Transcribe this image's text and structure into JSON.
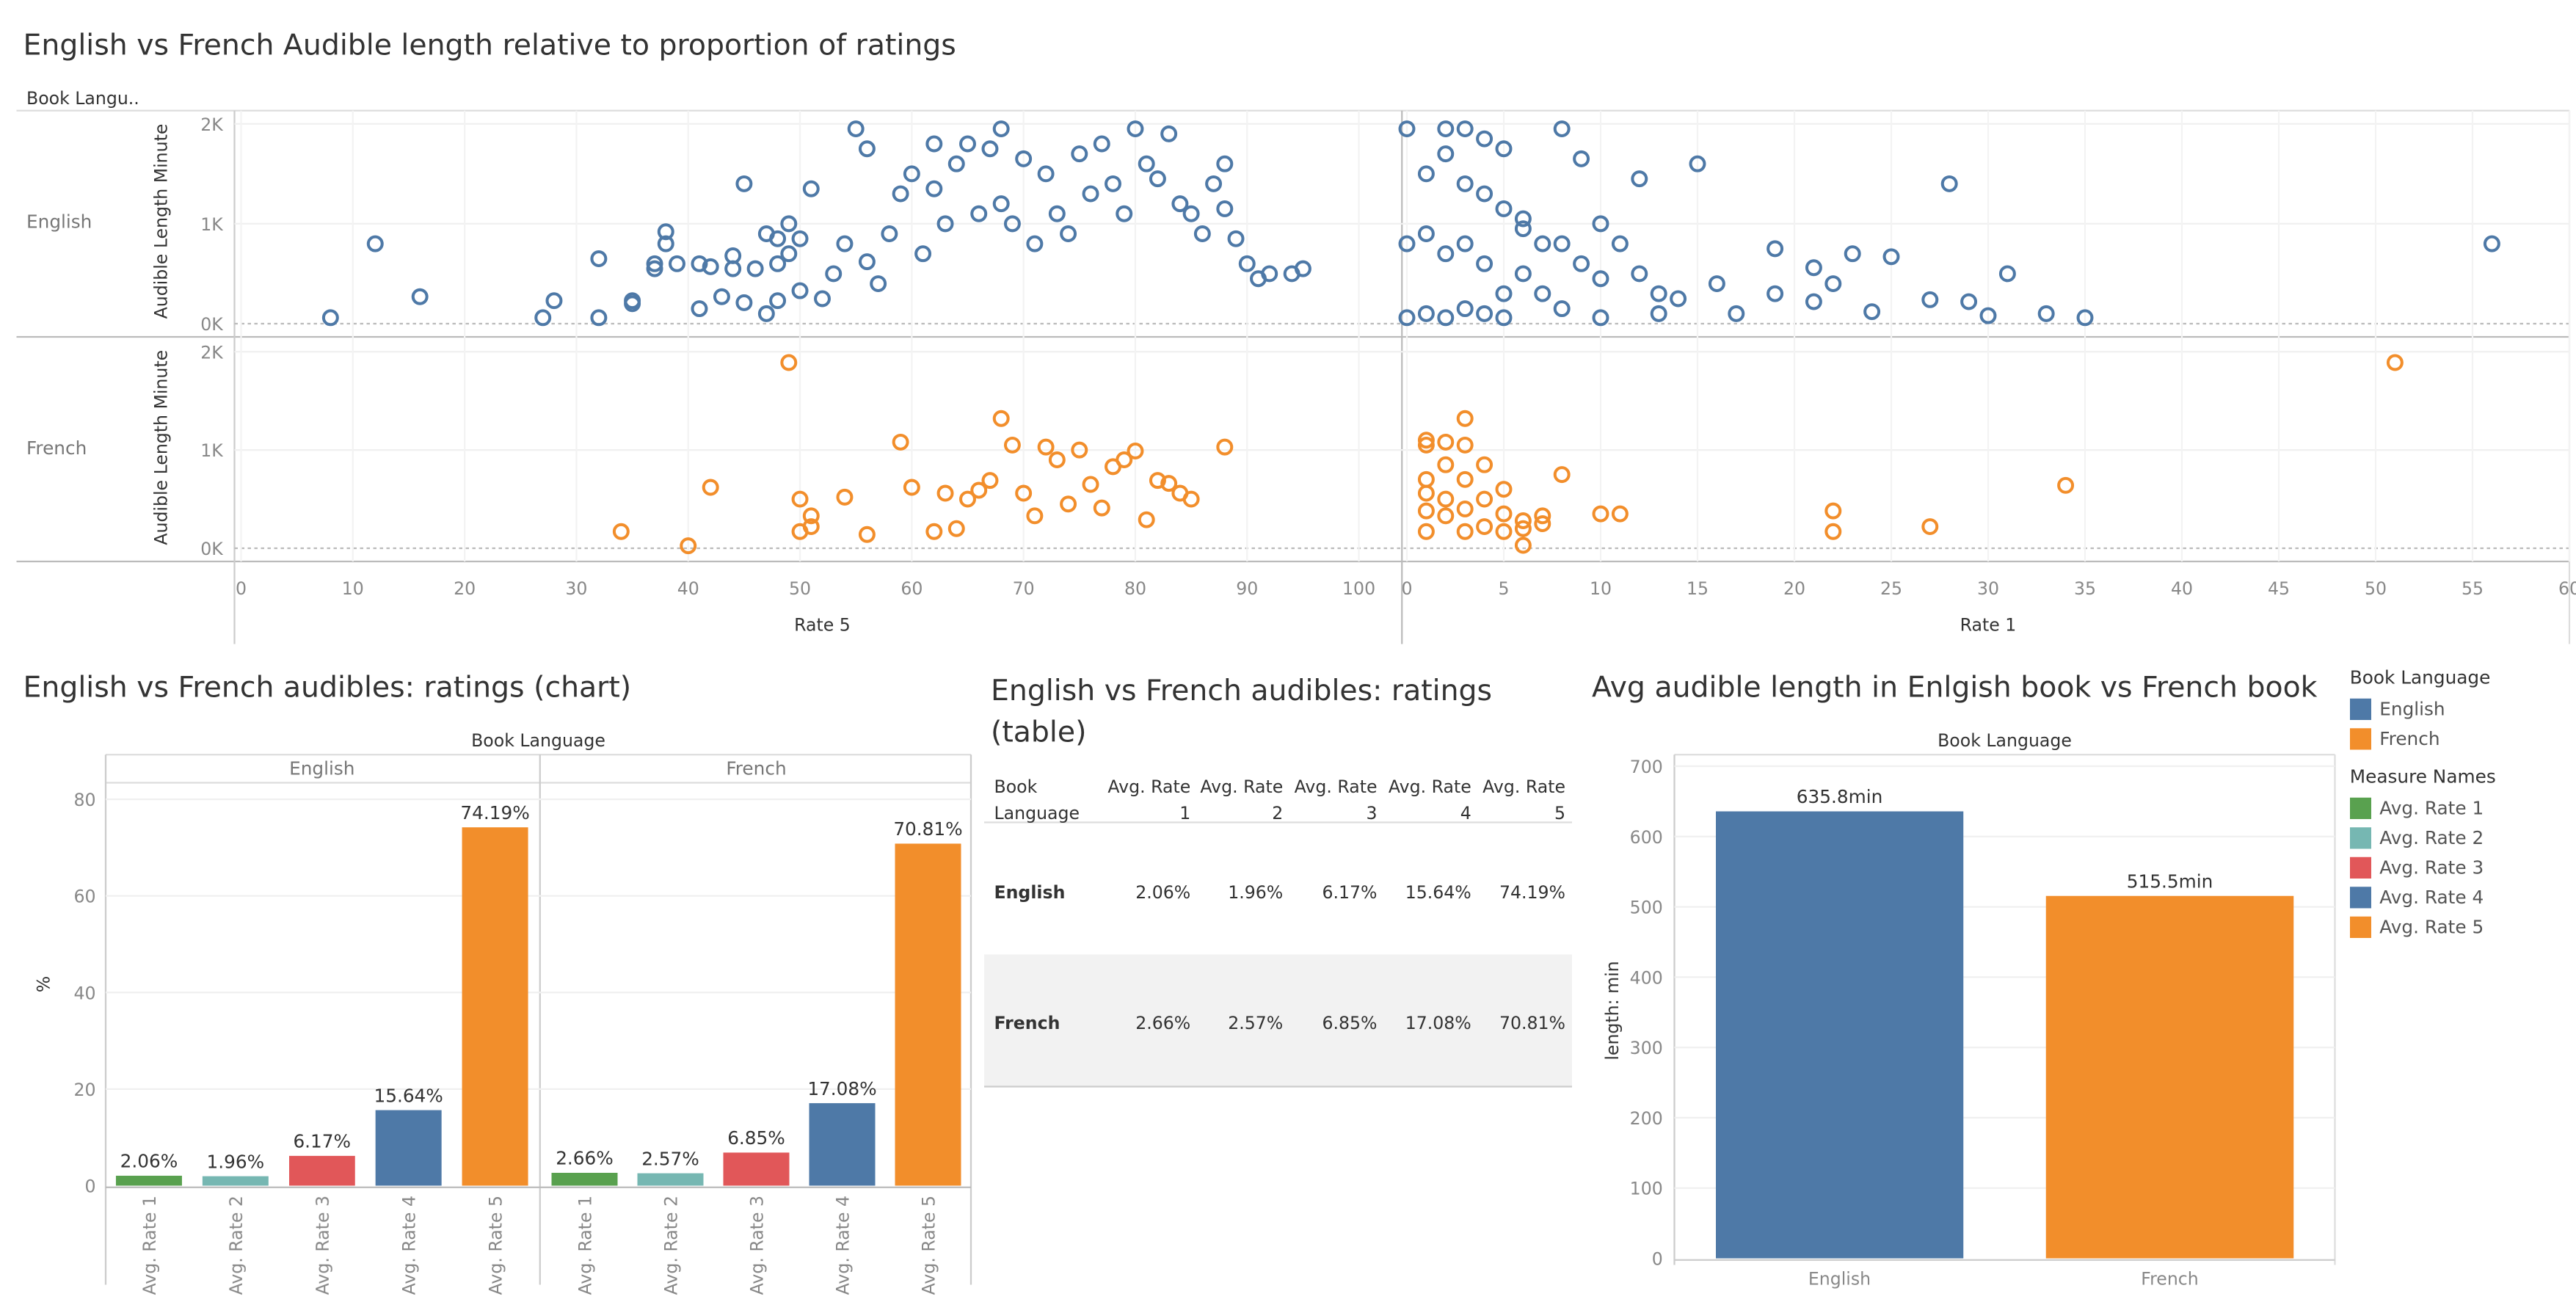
{
  "titles": {
    "scatter": "English vs French Audible length relative to proportion of ratings",
    "bar": "English vs French audibles:  ratings (chart)",
    "table": "English vs French audibles:  ratings (table)",
    "avg": "Avg audible length in Enlgish book vs French book"
  },
  "colors": {
    "english": "#4e79a7",
    "french": "#f28e2b",
    "rate1": "#59a14f",
    "rate2": "#76b7b2",
    "rate3": "#e15759",
    "rate4": "#4e79a7",
    "rate5": "#f28e2b"
  },
  "chart_data": [
    {
      "type": "scatter",
      "title": "English vs French Audible length relative to proportion of ratings",
      "row_field": "Book Langu..",
      "rows": [
        "English",
        "French"
      ],
      "ylabel": "Audible Length Minute",
      "y_ticks": [
        "0K",
        "1K",
        "2K"
      ],
      "ylim": [
        0,
        2000
      ],
      "panels": [
        {
          "xlabel": "Rate 5",
          "xlim": [
            0,
            104
          ],
          "x_ticks": [
            0,
            10,
            20,
            30,
            40,
            50,
            60,
            70,
            80,
            90,
            100
          ]
        },
        {
          "xlabel": "Rate 1",
          "xlim": [
            0,
            60
          ],
          "x_ticks": [
            0,
            5,
            10,
            15,
            20,
            25,
            30,
            35,
            40,
            45,
            50,
            55,
            60
          ]
        }
      ],
      "series": [
        {
          "name": "English",
          "panel": "Rate 5",
          "points": [
            [
              8,
              60
            ],
            [
              12,
              800
            ],
            [
              16,
              270
            ],
            [
              27,
              60
            ],
            [
              28,
              230
            ],
            [
              32,
              650
            ],
            [
              32,
              60
            ],
            [
              35,
              200
            ],
            [
              35,
              230
            ],
            [
              37,
              600
            ],
            [
              37,
              550
            ],
            [
              38,
              920
            ],
            [
              38,
              800
            ],
            [
              39,
              600
            ],
            [
              41,
              150
            ],
            [
              41,
              600
            ],
            [
              42,
              570
            ],
            [
              43,
              270
            ],
            [
              44,
              680
            ],
            [
              44,
              550
            ],
            [
              45,
              1400
            ],
            [
              45,
              210
            ],
            [
              46,
              550
            ],
            [
              47,
              100
            ],
            [
              47,
              900
            ],
            [
              48,
              850
            ],
            [
              48,
              600
            ],
            [
              48,
              230
            ],
            [
              49,
              1000
            ],
            [
              49,
              700
            ],
            [
              50,
              330
            ],
            [
              50,
              850
            ],
            [
              51,
              1350
            ],
            [
              52,
              250
            ],
            [
              53,
              500
            ],
            [
              54,
              800
            ],
            [
              55,
              1950
            ],
            [
              56,
              1750
            ],
            [
              56,
              620
            ],
            [
              57,
              400
            ],
            [
              58,
              900
            ],
            [
              59,
              1300
            ],
            [
              60,
              1500
            ],
            [
              61,
              700
            ],
            [
              62,
              1800
            ],
            [
              62,
              1350
            ],
            [
              63,
              1000
            ],
            [
              64,
              1600
            ],
            [
              65,
              1800
            ],
            [
              66,
              1100
            ],
            [
              67,
              1750
            ],
            [
              68,
              1950
            ],
            [
              68,
              1200
            ],
            [
              69,
              1000
            ],
            [
              70,
              1650
            ],
            [
              71,
              800
            ],
            [
              72,
              1500
            ],
            [
              73,
              1100
            ],
            [
              74,
              900
            ],
            [
              75,
              1700
            ],
            [
              76,
              1300
            ],
            [
              77,
              1800
            ],
            [
              78,
              1400
            ],
            [
              79,
              1100
            ],
            [
              80,
              1950
            ],
            [
              81,
              1600
            ],
            [
              82,
              1450
            ],
            [
              83,
              1900
            ],
            [
              84,
              1200
            ],
            [
              85,
              1100
            ],
            [
              86,
              900
            ],
            [
              87,
              1400
            ],
            [
              88,
              1600
            ],
            [
              88,
              1150
            ],
            [
              89,
              850
            ],
            [
              90,
              600
            ],
            [
              91,
              450
            ],
            [
              92,
              500
            ],
            [
              94,
              500
            ],
            [
              95,
              550
            ]
          ]
        },
        {
          "name": "English",
          "panel": "Rate 1",
          "points": [
            [
              0,
              1950
            ],
            [
              0,
              800
            ],
            [
              0,
              60
            ],
            [
              1,
              1500
            ],
            [
              1,
              900
            ],
            [
              1,
              100
            ],
            [
              2,
              1950
            ],
            [
              2,
              1700
            ],
            [
              2,
              700
            ],
            [
              2,
              60
            ],
            [
              3,
              1950
            ],
            [
              3,
              1400
            ],
            [
              3,
              800
            ],
            [
              3,
              150
            ],
            [
              4,
              1850
            ],
            [
              4,
              1300
            ],
            [
              4,
              600
            ],
            [
              4,
              100
            ],
            [
              5,
              1750
            ],
            [
              5,
              1150
            ],
            [
              5,
              300
            ],
            [
              5,
              60
            ],
            [
              6,
              1050
            ],
            [
              6,
              950
            ],
            [
              6,
              500
            ],
            [
              7,
              800
            ],
            [
              7,
              300
            ],
            [
              8,
              1950
            ],
            [
              8,
              800
            ],
            [
              8,
              150
            ],
            [
              9,
              1650
            ],
            [
              9,
              600
            ],
            [
              10,
              1000
            ],
            [
              10,
              450
            ],
            [
              10,
              60
            ],
            [
              11,
              800
            ],
            [
              12,
              1450
            ],
            [
              12,
              500
            ],
            [
              13,
              300
            ],
            [
              13,
              100
            ],
            [
              14,
              250
            ],
            [
              15,
              1600
            ],
            [
              16,
              400
            ],
            [
              17,
              100
            ],
            [
              19,
              300
            ],
            [
              19,
              750
            ],
            [
              21,
              220
            ],
            [
              21,
              560
            ],
            [
              22,
              400
            ],
            [
              23,
              700
            ],
            [
              24,
              120
            ],
            [
              25,
              670
            ],
            [
              27,
              240
            ],
            [
              28,
              1400
            ],
            [
              29,
              220
            ],
            [
              30,
              80
            ],
            [
              31,
              500
            ],
            [
              33,
              100
            ],
            [
              35,
              60
            ],
            [
              56,
              800
            ]
          ]
        },
        {
          "name": "French",
          "panel": "Rate 5",
          "points": [
            [
              34,
              170
            ],
            [
              40,
              25
            ],
            [
              42,
              620
            ],
            [
              49,
              1890
            ],
            [
              50,
              500
            ],
            [
              50,
              170
            ],
            [
              51,
              330
            ],
            [
              51,
              220
            ],
            [
              54,
              520
            ],
            [
              56,
              140
            ],
            [
              59,
              1080
            ],
            [
              60,
              620
            ],
            [
              62,
              170
            ],
            [
              63,
              560
            ],
            [
              64,
              200
            ],
            [
              65,
              500
            ],
            [
              66,
              590
            ],
            [
              67,
              690
            ],
            [
              68,
              1320
            ],
            [
              69,
              1050
            ],
            [
              70,
              560
            ],
            [
              71,
              330
            ],
            [
              72,
              1030
            ],
            [
              73,
              900
            ],
            [
              74,
              450
            ],
            [
              75,
              1000
            ],
            [
              76,
              650
            ],
            [
              77,
              410
            ],
            [
              78,
              830
            ],
            [
              79,
              900
            ],
            [
              80,
              990
            ],
            [
              81,
              290
            ],
            [
              82,
              690
            ],
            [
              83,
              660
            ],
            [
              84,
              560
            ],
            [
              85,
              500
            ],
            [
              88,
              1030
            ]
          ]
        },
        {
          "name": "French",
          "panel": "Rate 1",
          "points": [
            [
              1,
              1100
            ],
            [
              1,
              1050
            ],
            [
              1,
              700
            ],
            [
              1,
              560
            ],
            [
              1,
              380
            ],
            [
              1,
              170
            ],
            [
              2,
              1080
            ],
            [
              2,
              850
            ],
            [
              2,
              500
            ],
            [
              2,
              330
            ],
            [
              3,
              1320
            ],
            [
              3,
              1050
            ],
            [
              3,
              700
            ],
            [
              3,
              400
            ],
            [
              3,
              170
            ],
            [
              4,
              850
            ],
            [
              4,
              500
            ],
            [
              4,
              220
            ],
            [
              5,
              600
            ],
            [
              5,
              350
            ],
            [
              5,
              170
            ],
            [
              6,
              280
            ],
            [
              6,
              200
            ],
            [
              6,
              30
            ],
            [
              7,
              330
            ],
            [
              7,
              250
            ],
            [
              8,
              750
            ],
            [
              10,
              350
            ],
            [
              11,
              350
            ],
            [
              22,
              380
            ],
            [
              22,
              170
            ],
            [
              27,
              220
            ],
            [
              34,
              640
            ],
            [
              51,
              1890
            ]
          ]
        }
      ]
    },
    {
      "type": "bar",
      "title": "English vs French audibles:  ratings (chart)",
      "column_field": "Book Language",
      "ylabel": "%",
      "ylim": [
        0,
        86
      ],
      "y_ticks": [
        0,
        20,
        40,
        60,
        80
      ],
      "categories": [
        "Avg. Rate 1",
        "Avg. Rate 2",
        "Avg. Rate 3",
        "Avg. Rate 4",
        "Avg. Rate 5"
      ],
      "series": [
        {
          "name": "English",
          "values": [
            2.06,
            1.96,
            6.17,
            15.64,
            74.19
          ],
          "labels": [
            "2.06%",
            "1.96%",
            "6.17%",
            "15.64%",
            "74.19%"
          ]
        },
        {
          "name": "French",
          "values": [
            2.66,
            2.57,
            6.85,
            17.08,
            70.81
          ],
          "labels": [
            "2.66%",
            "2.57%",
            "6.85%",
            "17.08%",
            "70.81%"
          ]
        }
      ]
    },
    {
      "type": "table",
      "title": "English vs French audibles:  ratings (table)",
      "header": [
        [
          "Book",
          "Language"
        ],
        [
          "Avg. Rate",
          "1"
        ],
        [
          "Avg. Rate",
          "2"
        ],
        [
          "Avg. Rate",
          "3"
        ],
        [
          "Avg. Rate",
          "4"
        ],
        [
          "Avg. Rate",
          "5"
        ]
      ],
      "rows": [
        [
          "English",
          "2.06%",
          "1.96%",
          "6.17%",
          "15.64%",
          "74.19%"
        ],
        [
          "French",
          "2.66%",
          "2.57%",
          "6.85%",
          "17.08%",
          "70.81%"
        ]
      ]
    },
    {
      "type": "bar",
      "title": "Avg audible length in Enlgish book vs French book",
      "column_field": "Book Language",
      "ylabel": "length: min",
      "ylim": [
        0,
        716
      ],
      "y_ticks": [
        0,
        100,
        200,
        300,
        400,
        500,
        600,
        700
      ],
      "categories": [
        "English",
        "French"
      ],
      "values": [
        635.8,
        515.5
      ],
      "labels": [
        "635.8min",
        "515.5min"
      ]
    }
  ],
  "legend": {
    "book_language_title": "Book Language",
    "book_language": [
      {
        "label": "English",
        "color": "#4e79a7"
      },
      {
        "label": "French",
        "color": "#f28e2b"
      }
    ],
    "measure_names_title": "Measure Names",
    "measure_names": [
      {
        "label": "Avg. Rate 1",
        "color": "#59a14f"
      },
      {
        "label": "Avg. Rate 2",
        "color": "#76b7b2"
      },
      {
        "label": "Avg. Rate 3",
        "color": "#e15759"
      },
      {
        "label": "Avg. Rate 4",
        "color": "#4e79a7"
      },
      {
        "label": "Avg. Rate 5",
        "color": "#f28e2b"
      }
    ]
  }
}
